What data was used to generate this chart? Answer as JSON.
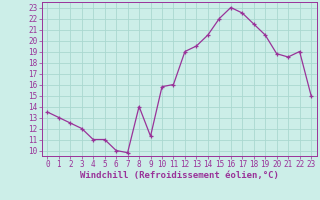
{
  "x": [
    0,
    1,
    2,
    3,
    4,
    5,
    6,
    7,
    8,
    9,
    10,
    11,
    12,
    13,
    14,
    15,
    16,
    17,
    18,
    19,
    20,
    21,
    22,
    23
  ],
  "y": [
    13.5,
    13.0,
    12.5,
    12.0,
    11.0,
    11.0,
    10.0,
    9.8,
    14.0,
    11.3,
    15.8,
    16.0,
    19.0,
    19.5,
    20.5,
    22.0,
    23.0,
    22.5,
    21.5,
    20.5,
    18.8,
    18.5,
    19.0,
    15.0
  ],
  "line_color": "#993399",
  "marker": "+",
  "bg_color": "#cceee8",
  "grid_color": "#aad8d0",
  "xlabel": "Windchill (Refroidissement éolien,°C)",
  "ylabel": "",
  "ylim_min": 9.5,
  "ylim_max": 23.5,
  "xlim_min": -0.5,
  "xlim_max": 23.5,
  "yticks": [
    10,
    11,
    12,
    13,
    14,
    15,
    16,
    17,
    18,
    19,
    20,
    21,
    22,
    23
  ],
  "xticks": [
    0,
    1,
    2,
    3,
    4,
    5,
    6,
    7,
    8,
    9,
    10,
    11,
    12,
    13,
    14,
    15,
    16,
    17,
    18,
    19,
    20,
    21,
    22,
    23
  ],
  "tick_color": "#993399",
  "tick_fontsize": 5.5,
  "xlabel_fontsize": 6.5,
  "spine_color": "#993399",
  "line_width": 0.9,
  "marker_size": 3.5,
  "marker_edge_width": 0.9
}
